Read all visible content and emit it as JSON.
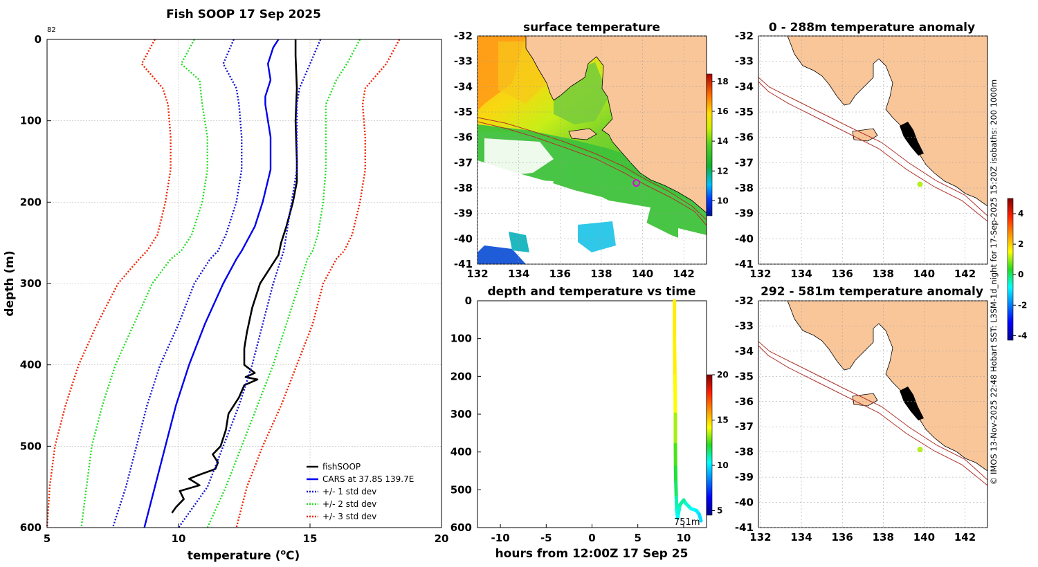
{
  "page_title": "Fish SOOP 17 Sep 2025",
  "footer_credit": "© IMOS 13-Nov-2025 22:48 Hobart SST: L3SM-1d_night for 17-Sep-2025 15:20Z isobaths: 200  1000m",
  "colors": {
    "land": "#f9c69a",
    "isobath": "#b0302a",
    "profile": "#000000",
    "cars": "#0000ee",
    "std1": "#1010cc",
    "std2": "#22dd22",
    "std3": "#ee2200",
    "marker_anomaly": "#b6ee22",
    "marker_sst": "#dd00dd"
  },
  "chart_data": [
    {
      "type": "line",
      "id": "profile",
      "title": "Fish SOOP 17 Sep 2025",
      "xlabel_prefix": "temperature (",
      "xlabel_sup": "o",
      "xlabel_suffix": "C)",
      "ylabel": "depth (m)",
      "xlim": [
        5,
        20
      ],
      "ylim": [
        600,
        0
      ],
      "xticks": [
        5,
        10,
        15,
        20
      ],
      "yticks": [
        0,
        100,
        200,
        300,
        400,
        500,
        600
      ],
      "corner_note": "82",
      "grid": true,
      "legend_position": "bottom-right",
      "series": [
        {
          "name": "fishSOOP",
          "style": "solid",
          "color_key": "profile",
          "width": 2.6,
          "depth": [
            0,
            20,
            60,
            100,
            150,
            175,
            200,
            230,
            250,
            265,
            285,
            300,
            330,
            360,
            380,
            400,
            410,
            415,
            418,
            425,
            440,
            460,
            480,
            500,
            510,
            520,
            528,
            535,
            540,
            548,
            555,
            565,
            575,
            582
          ],
          "temp": [
            14.45,
            14.45,
            14.5,
            14.45,
            14.5,
            14.5,
            14.35,
            14.1,
            13.9,
            13.8,
            13.4,
            13.1,
            12.8,
            12.6,
            12.5,
            12.5,
            12.9,
            12.55,
            13.0,
            12.5,
            12.3,
            11.9,
            11.8,
            11.6,
            11.3,
            11.5,
            11.4,
            10.8,
            10.4,
            10.8,
            10.05,
            10.2,
            9.9,
            9.75
          ]
        },
        {
          "name": "CARS at 37.8S 139.7E",
          "style": "solid",
          "color_key": "cars",
          "width": 2.4,
          "depth": [
            0,
            10,
            30,
            50,
            70,
            80,
            120,
            160,
            200,
            230,
            260,
            270,
            300,
            350,
            400,
            450,
            500,
            550,
            600
          ],
          "temp": [
            13.8,
            13.6,
            13.4,
            13.5,
            13.3,
            13.3,
            13.5,
            13.5,
            13.2,
            12.9,
            12.4,
            12.2,
            11.7,
            11.0,
            10.4,
            9.9,
            9.5,
            9.1,
            8.7
          ]
        },
        {
          "name": "+/- 1 std dev",
          "style": "dotted",
          "color_key": "std1",
          "width": 2.4,
          "pair": true,
          "depth": [
            0,
            30,
            60,
            80,
            120,
            160,
            200,
            240,
            260,
            270,
            300,
            350,
            400,
            450,
            500,
            550,
            600
          ],
          "lo": [
            12.1,
            11.7,
            12.2,
            12.3,
            12.4,
            12.4,
            12.2,
            11.8,
            11.5,
            11.2,
            10.6,
            10.0,
            9.3,
            8.8,
            8.4,
            8.0,
            7.5
          ],
          "hi": [
            15.4,
            15.0,
            14.6,
            14.5,
            14.5,
            14.5,
            14.3,
            14.1,
            14.0,
            13.9,
            13.6,
            13.2,
            12.8,
            12.3,
            11.7,
            11.1,
            10.0
          ]
        },
        {
          "name": "+/- 2 std dev",
          "style": "dotted",
          "color_key": "std2",
          "width": 2.4,
          "pair": true,
          "depth": [
            0,
            30,
            50,
            80,
            120,
            160,
            200,
            240,
            260,
            270,
            300,
            350,
            400,
            450,
            500,
            550,
            600
          ],
          "lo": [
            10.6,
            10.1,
            10.8,
            10.9,
            11.1,
            11.1,
            10.9,
            10.5,
            10.1,
            9.7,
            9.0,
            8.3,
            7.6,
            7.1,
            6.7,
            6.5,
            6.3
          ],
          "hi": [
            16.9,
            16.4,
            16.0,
            15.6,
            15.6,
            15.6,
            15.5,
            15.3,
            15.1,
            14.9,
            14.6,
            14.1,
            13.6,
            13.0,
            12.4,
            11.8,
            11.1
          ]
        },
        {
          "name": "+/- 3 std dev",
          "style": "dotted",
          "color_key": "std3",
          "width": 2.4,
          "pair": true,
          "depth": [
            0,
            30,
            60,
            80,
            120,
            160,
            200,
            240,
            260,
            270,
            300,
            350,
            400,
            450,
            500,
            550,
            600
          ],
          "lo": [
            9.1,
            8.6,
            9.4,
            9.6,
            9.7,
            9.7,
            9.5,
            9.2,
            8.8,
            8.5,
            7.7,
            6.9,
            6.2,
            5.7,
            5.3,
            5.1,
            5.0
          ],
          "hi": [
            18.4,
            17.9,
            17.1,
            17.0,
            17.1,
            17.1,
            16.9,
            16.6,
            16.3,
            16.0,
            15.5,
            15.1,
            14.5,
            13.9,
            13.2,
            12.6,
            12.2
          ]
        }
      ]
    },
    {
      "type": "heatmap",
      "id": "surface_temperature",
      "title": "surface temperature",
      "xlim": [
        132,
        143.1
      ],
      "ylim": [
        -41,
        -32
      ],
      "xticks": [
        132,
        134,
        136,
        138,
        140,
        142
      ],
      "yticks": [
        -32,
        -33,
        -34,
        -35,
        -36,
        -37,
        -38,
        -39,
        -40,
        -41
      ],
      "colorbar": {
        "min": 9,
        "max": 18.5,
        "ticks": [
          10,
          12,
          14,
          16,
          18
        ]
      },
      "marker": {
        "lon": 139.7,
        "lat": -37.8
      }
    },
    {
      "type": "scatter",
      "id": "depth_time",
      "title": "depth and temperature vs time",
      "xlabel": "hours from 12:00Z 17 Sep 25",
      "xlim": [
        -12.5,
        12.5
      ],
      "ylim": [
        600,
        0
      ],
      "xticks": [
        -10,
        -5,
        0,
        5,
        10
      ],
      "yticks": [
        0,
        100,
        200,
        300,
        400,
        500,
        600
      ],
      "colorbar": {
        "min": 4.5,
        "max": 20,
        "ticks": [
          5,
          10,
          15,
          20
        ]
      },
      "annotation": "751m",
      "track": {
        "hours": [
          9.0,
          9.0,
          9.05,
          9.1,
          9.1,
          9.12,
          9.15,
          9.2,
          9.25,
          9.35,
          9.45,
          9.6,
          10.0,
          10.2,
          10.8,
          11.4,
          11.7,
          11.9
        ],
        "depth": [
          0,
          100,
          200,
          300,
          380,
          440,
          480,
          520,
          556,
          575,
          560,
          540,
          527,
          535,
          550,
          555,
          565,
          582
        ],
        "temp": [
          14.45,
          14.5,
          14.4,
          13.9,
          12.9,
          12.3,
          11.8,
          11.5,
          10.4,
          10.1,
          10.6,
          10.9,
          11.4,
          11.0,
          10.4,
          10.2,
          9.9,
          9.75
        ]
      }
    },
    {
      "type": "heatmap",
      "id": "anomaly_shallow",
      "title": "0 - 288m temperature anomaly",
      "xlim": [
        131.9,
        143.1
      ],
      "ylim": [
        -41,
        -32
      ],
      "xticks": [
        132,
        134,
        136,
        138,
        140,
        142
      ],
      "yticks": [
        -32,
        -33,
        -34,
        -35,
        -36,
        -37,
        -38,
        -39,
        -40,
        -41
      ],
      "marker": {
        "lon": 139.8,
        "lat": -37.85
      }
    },
    {
      "type": "heatmap",
      "id": "anomaly_deep",
      "title": "292 - 581m temperature anomaly",
      "xlim": [
        131.9,
        143.1
      ],
      "ylim": [
        -41,
        -32
      ],
      "xticks": [
        132,
        134,
        136,
        138,
        140,
        142
      ],
      "yticks": [
        -32,
        -33,
        -34,
        -35,
        -36,
        -37,
        -38,
        -39,
        -40,
        -41
      ],
      "marker": {
        "lon": 139.8,
        "lat": -37.9
      },
      "colorbar": {
        "min": -4.3,
        "max": 5.0,
        "ticks": [
          -4,
          -2,
          0,
          2,
          4
        ]
      }
    }
  ]
}
